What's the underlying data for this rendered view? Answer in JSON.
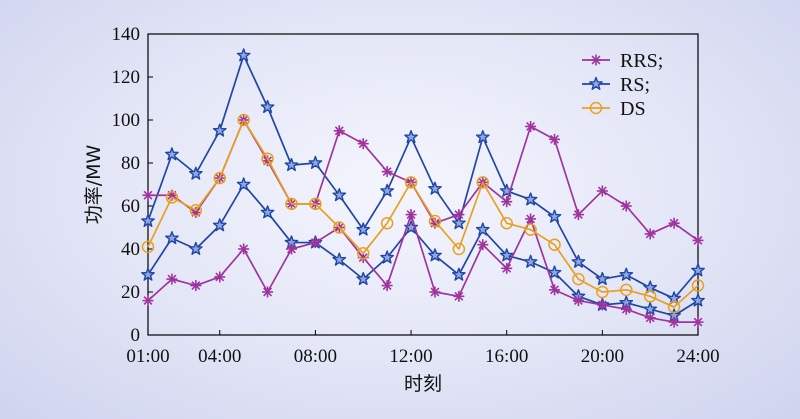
{
  "chart_data": {
    "type": "line",
    "xlabel": "时刻",
    "ylabel": "功率/MW",
    "ylim": [
      0,
      140
    ],
    "yticks": [
      0,
      20,
      40,
      60,
      80,
      100,
      120,
      140
    ],
    "xlim": [
      1,
      24
    ],
    "xtick_values": [
      1,
      4,
      8,
      12,
      16,
      20,
      24
    ],
    "xtick_labels": [
      "01:00",
      "04:00",
      "08:00",
      "12:00",
      "16:00",
      "20:00",
      "24:00"
    ],
    "x": [
      1,
      2,
      3,
      4,
      5,
      6,
      7,
      8,
      9,
      10,
      11,
      12,
      13,
      14,
      15,
      16,
      17,
      18,
      19,
      20,
      21,
      22,
      23,
      24
    ],
    "grid": false,
    "legend_position": "top-right",
    "series": [
      {
        "name": "RRS;",
        "color": "#a0349e",
        "marker": "asterisk",
        "values": [
          65,
          65,
          57,
          73,
          100,
          81,
          61,
          61,
          95,
          89,
          76,
          71,
          52,
          56,
          71,
          62,
          97,
          91,
          56,
          67,
          60,
          47,
          52,
          44
        ]
      },
      {
        "name": "RS;",
        "color": "#1f45a6",
        "marker": "star",
        "values": [
          53,
          84,
          75,
          95,
          130,
          106,
          79,
          80,
          65,
          49,
          67,
          92,
          68,
          52,
          92,
          67,
          63,
          55,
          34,
          26,
          28,
          22,
          17,
          30
        ]
      },
      {
        "name": "DS",
        "color": "#e8a020",
        "marker": "circle",
        "values": [
          41,
          64,
          58,
          73,
          100,
          82,
          61,
          61,
          50,
          38,
          52,
          71,
          53,
          40,
          71,
          52,
          49,
          42,
          26,
          20,
          21,
          18,
          13,
          23
        ]
      }
    ],
    "extra_lines": [
      {
        "legend_key": "RS;",
        "color": "#1f45a6",
        "marker": "star",
        "values": [
          28,
          45,
          40,
          51,
          70,
          57,
          43,
          43,
          35,
          26,
          36,
          50,
          37,
          28,
          49,
          37,
          34,
          29,
          18,
          14,
          15,
          12,
          9,
          16
        ]
      },
      {
        "legend_key": "RRS;",
        "color": "#a0349e",
        "marker": "asterisk",
        "values": [
          16,
          26,
          23,
          27,
          40,
          20,
          40,
          43,
          50,
          36,
          23,
          56,
          20,
          18,
          42,
          31,
          54,
          21,
          16,
          14,
          12,
          8,
          6,
          6
        ]
      }
    ]
  }
}
